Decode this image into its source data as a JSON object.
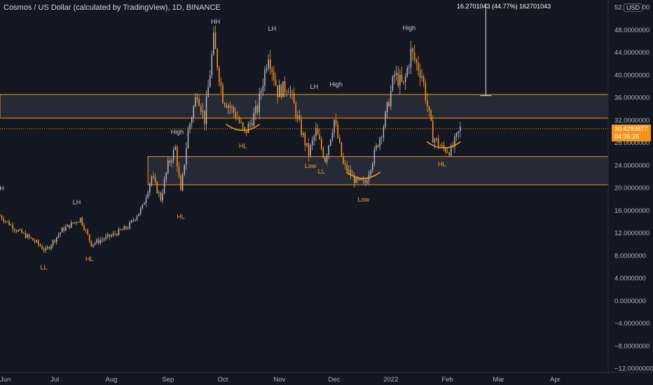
{
  "header": {
    "title": "Cosmos / US Dollar (calculated by TradingView), 1D, BINANCE"
  },
  "axis": {
    "currency_badge": "USD",
    "y_ticks": [
      "52.0000000",
      "48.0000000",
      "44.0000000",
      "40.0000000",
      "36.0000000",
      "32.0000000",
      "28.0000000",
      "24.0000000",
      "20.0000000",
      "16.0000000",
      "12.0000000",
      "8.0000000",
      "4.0000000",
      "0.0000000",
      "−4.0000000",
      "−8.0000000",
      "−12.0000000"
    ],
    "x_ticks": [
      "Jun",
      "Jul",
      "Aug",
      "Sep",
      "Oct",
      "Nov",
      "Dec",
      "2022",
      "Feb",
      "Mar",
      "Apr"
    ]
  },
  "price_tag": {
    "price": "30.4293877",
    "countdown": "04:36:26"
  },
  "measure": {
    "label": "16.2701043 (44.77%) 1627010​43"
  },
  "colors": {
    "background": "#131722",
    "zone_fill": "#2a2e39",
    "zone_border": "#f7931a",
    "candle_up": "#b2b5be",
    "candle_down": "#f7931a",
    "text": "#d1d4dc"
  },
  "chart_data": {
    "type": "candlestick",
    "title": "Cosmos / US Dollar (calculated by TradingView), 1D, BINANCE",
    "ylim": [
      -12,
      52
    ],
    "x_range": [
      "2021-06-01",
      "2022-04-30"
    ],
    "last_price": 30.4293877,
    "zones": [
      {
        "low": 32.3,
        "high": 36.5
      },
      {
        "low": 20.5,
        "high": 25.5
      }
    ],
    "horizontal_lines": [
      30.43
    ],
    "measure": {
      "from": 36.3,
      "to": 52.6,
      "change": 16.2701043,
      "percent": 44.77
    },
    "price_path": [
      [
        "2021-06-01",
        15.0
      ],
      [
        "2021-06-10",
        12.5
      ],
      [
        "2021-06-20",
        10.5
      ],
      [
        "2021-06-26",
        8.8
      ],
      [
        "2021-07-05",
        12.5
      ],
      [
        "2021-07-15",
        14.5
      ],
      [
        "2021-07-21",
        10.0
      ],
      [
        "2021-08-01",
        11.5
      ],
      [
        "2021-08-10",
        13.0
      ],
      [
        "2021-08-18",
        16.5
      ],
      [
        "2021-08-23",
        22.0
      ],
      [
        "2021-08-28",
        18.0
      ],
      [
        "2021-09-01",
        24.0
      ],
      [
        "2021-09-05",
        27.0
      ],
      [
        "2021-09-08",
        19.0
      ],
      [
        "2021-09-12",
        30.0
      ],
      [
        "2021-09-17",
        37.0
      ],
      [
        "2021-09-21",
        32.0
      ],
      [
        "2021-09-26",
        46.0
      ],
      [
        "2021-10-01",
        36.0
      ],
      [
        "2021-10-08",
        33.0
      ],
      [
        "2021-10-13",
        29.5
      ],
      [
        "2021-10-20",
        34.0
      ],
      [
        "2021-10-26",
        44.0
      ],
      [
        "2021-10-31",
        37.0
      ],
      [
        "2021-11-06",
        38.0
      ],
      [
        "2021-11-12",
        31.0
      ],
      [
        "2021-11-17",
        26.0
      ],
      [
        "2021-11-21",
        30.0
      ],
      [
        "2021-11-26",
        25.0
      ],
      [
        "2021-12-01",
        32.0
      ],
      [
        "2021-12-06",
        24.0
      ],
      [
        "2021-12-13",
        21.0
      ],
      [
        "2021-12-18",
        20.8
      ],
      [
        "2021-12-24",
        27.0
      ],
      [
        "2021-12-28",
        31.0
      ],
      [
        "2022-01-03",
        40.0
      ],
      [
        "2022-01-08",
        38.0
      ],
      [
        "2022-01-12",
        44.0
      ],
      [
        "2022-01-18",
        40.0
      ],
      [
        "2022-01-24",
        29.0
      ],
      [
        "2022-01-29",
        27.0
      ],
      [
        "2022-02-03",
        26.5
      ],
      [
        "2022-02-08",
        30.4
      ]
    ],
    "annotations": [
      {
        "text": "LH",
        "date": "2021-06-01",
        "price": 19.5,
        "color": "white"
      },
      {
        "text": "LL",
        "date": "2021-06-25",
        "price": 5.5,
        "color": "orange"
      },
      {
        "text": "LH",
        "date": "2021-07-13",
        "price": 17.0,
        "color": "white"
      },
      {
        "text": "HL",
        "date": "2021-07-20",
        "price": 7.0,
        "color": "orange"
      },
      {
        "text": "High",
        "date": "2021-09-06",
        "price": 29.5,
        "color": "white"
      },
      {
        "text": "HL",
        "date": "2021-09-08",
        "price": 14.5,
        "color": "orange"
      },
      {
        "text": "HH",
        "date": "2021-09-27",
        "price": 49.0,
        "color": "white"
      },
      {
        "text": "HL",
        "date": "2021-10-12",
        "price": 27.0,
        "color": "orange"
      },
      {
        "text": "LH",
        "date": "2021-10-28",
        "price": 47.8,
        "color": "white"
      },
      {
        "text": "Low",
        "date": "2021-11-18",
        "price": 23.5,
        "color": "orange"
      },
      {
        "text": "LH",
        "date": "2021-11-20",
        "price": 37.5,
        "color": "white"
      },
      {
        "text": "LL",
        "date": "2021-11-24",
        "price": 22.5,
        "color": "orange"
      },
      {
        "text": "High",
        "date": "2021-12-02",
        "price": 37.9,
        "color": "white"
      },
      {
        "text": "Low",
        "date": "2021-12-17",
        "price": 17.5,
        "color": "orange"
      },
      {
        "text": "High",
        "date": "2022-01-11",
        "price": 47.9,
        "color": "white"
      },
      {
        "text": "HL",
        "date": "2022-01-29",
        "price": 23.8,
        "color": "orange"
      }
    ],
    "curves": [
      {
        "date": "2021-10-12",
        "price": 30.5
      },
      {
        "date": "2021-12-17",
        "price": 22.0
      },
      {
        "date": "2022-01-30",
        "price": 27.4
      }
    ]
  }
}
